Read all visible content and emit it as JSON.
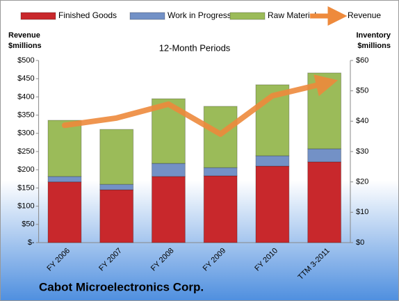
{
  "chart_data": {
    "type": "bar",
    "stacked": true,
    "title": "Cabot Microelectronics Corp.",
    "subtitle": "12-Month Periods",
    "ylabel": [
      "Revenue",
      "$millions"
    ],
    "y2label": [
      "Inventory",
      "$millions"
    ],
    "categories": [
      "FY 2006",
      "FY 2007",
      "FY 2008",
      "FY 2009",
      "FY 2010",
      "TTM 3-2011"
    ],
    "series": [
      {
        "name": "Finished Goods",
        "type": "bar",
        "axis": "y2",
        "color": "#c8282c",
        "values": [
          20.0,
          17.4,
          21.8,
          22.0,
          25.2,
          26.6
        ]
      },
      {
        "name": "Work in Progress",
        "type": "bar",
        "axis": "y2",
        "color": "#7391c6",
        "values": [
          1.8,
          1.8,
          4.3,
          2.7,
          3.4,
          4.3
        ]
      },
      {
        "name": "Raw Materials",
        "type": "bar",
        "axis": "y2",
        "color": "#9bbb59",
        "values": [
          18.5,
          18.1,
          21.3,
          20.2,
          23.4,
          25.0
        ]
      },
      {
        "name": "Revenue",
        "type": "line",
        "color": "#ee8a3c",
        "values": [
          322,
          342,
          380,
          298,
          403,
          437
        ]
      }
    ],
    "ylim": [
      0,
      500
    ],
    "yticks": [
      {
        "value": 0,
        "label": "$-"
      },
      {
        "value": 50,
        "label": "$50"
      },
      {
        "value": 100,
        "label": "$100"
      },
      {
        "value": 150,
        "label": "$150"
      },
      {
        "value": 200,
        "label": "$200"
      },
      {
        "value": 250,
        "label": "$250"
      },
      {
        "value": 300,
        "label": "$300"
      },
      {
        "value": 350,
        "label": "$350"
      },
      {
        "value": 400,
        "label": "$400"
      },
      {
        "value": 450,
        "label": "$450"
      },
      {
        "value": 500,
        "label": "$500"
      }
    ],
    "y2lim": [
      0,
      60
    ],
    "y2ticks": [
      {
        "value": 0,
        "label": "$0"
      },
      {
        "value": 10,
        "label": "$10"
      },
      {
        "value": 20,
        "label": "$20"
      },
      {
        "value": 30,
        "label": "$30"
      },
      {
        "value": 40,
        "label": "$40"
      },
      {
        "value": 50,
        "label": "$50"
      },
      {
        "value": 60,
        "label": "$60"
      }
    ]
  }
}
